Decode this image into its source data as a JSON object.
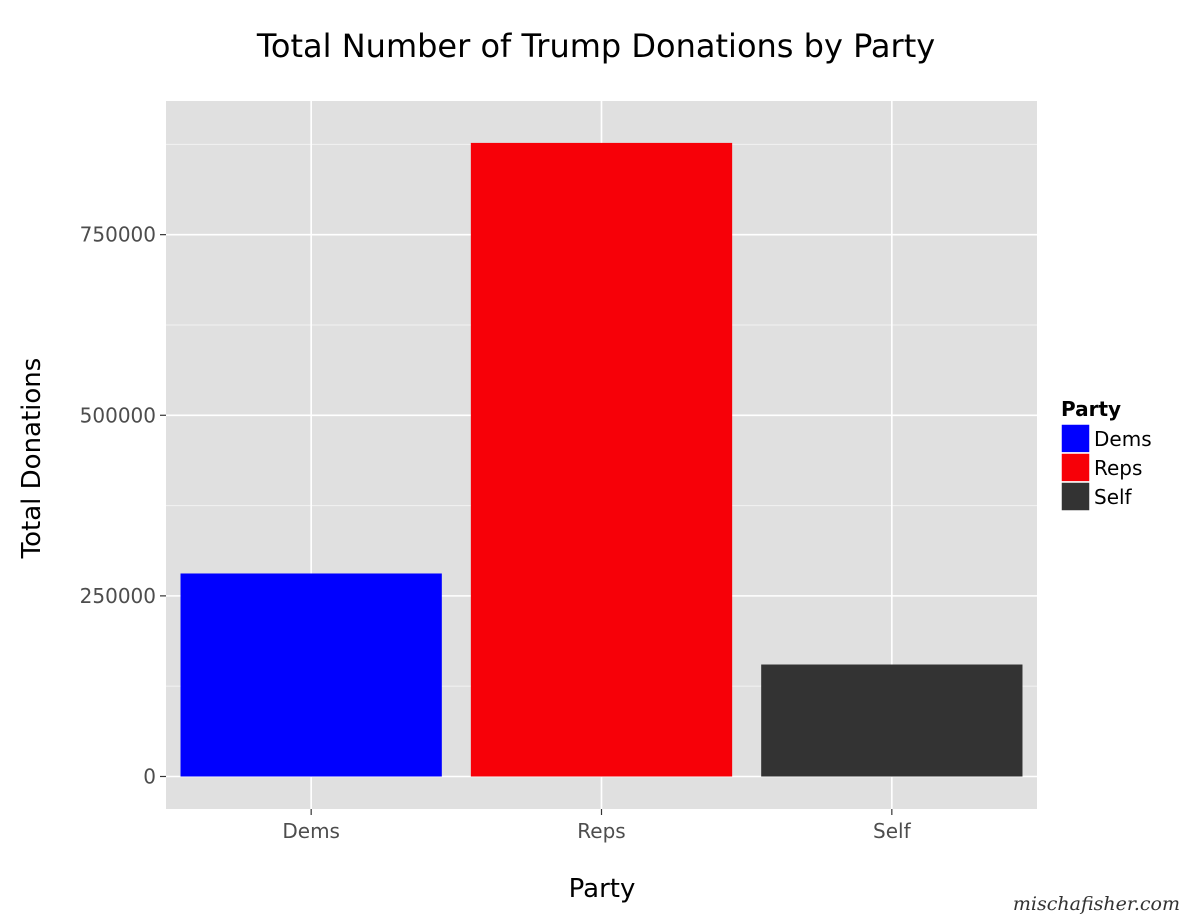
{
  "chart_data": {
    "type": "bar",
    "title": "Total Number of Trump Donations by Party",
    "xlabel": "Party",
    "ylabel": "Total Donations",
    "categories": [
      "Dems",
      "Reps",
      "Self"
    ],
    "values": [
      281000,
      877000,
      155000
    ],
    "colors": [
      "#0000ff",
      "#f70008",
      "#333333"
    ],
    "ylim": [
      -45000,
      935000
    ],
    "yticks": [
      0,
      250000,
      500000,
      750000
    ],
    "ytick_labels": [
      "0",
      "250000",
      "500000",
      "750000"
    ],
    "grid": true,
    "panel_background": "#e0e0e0",
    "legend": {
      "title": "Party",
      "position": "right",
      "entries": [
        {
          "label": "Dems",
          "color": "#0000ff"
        },
        {
          "label": "Reps",
          "color": "#f70008"
        },
        {
          "label": "Self",
          "color": "#333333"
        }
      ]
    }
  },
  "watermark": "mischafisher.com"
}
